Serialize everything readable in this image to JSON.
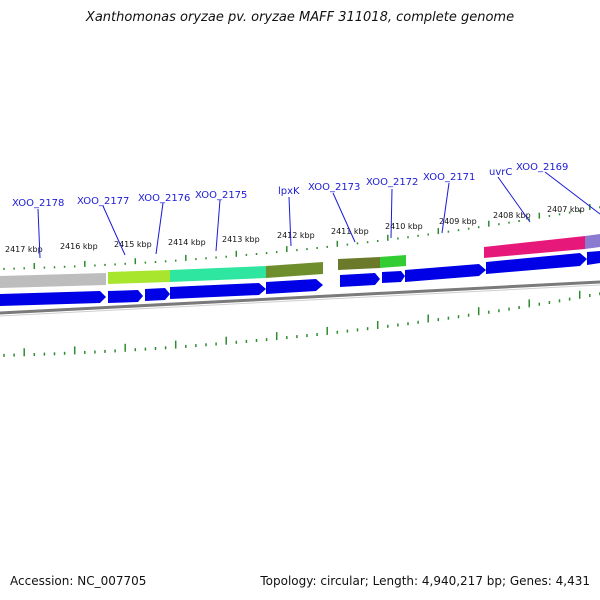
{
  "title": "Xanthomonas oryzae pv. oryzae MAFF 311018, complete genome",
  "footer": {
    "accession": "Accession: NC_007705",
    "summary": "Topology: circular; Length: 4,940,217 bp; Genes: 4,431"
  },
  "kbp_labels": [
    "2417 kbp",
    "2416 kbp",
    "2415 kbp",
    "2414 kbp",
    "2413 kbp",
    "2412 kbp",
    "2411 kbp",
    "2410 kbp",
    "2409 kbp",
    "2408 kbp",
    "2407 kbp"
  ],
  "gene_labels": [
    "XOO_2178",
    "XOO_2177",
    "XOO_2176",
    "XOO_2175",
    "lpxK",
    "XOO_2173",
    "XOO_2172",
    "XOO_2171",
    "uvrC",
    "XOO_2169"
  ],
  "colors": {
    "gene_arrow": "#0000e6",
    "tick": "#2e8b2e",
    "label": "#1a1ad6",
    "backbone": "#777777",
    "segments": [
      "#bdbdbd",
      "#a8e62e",
      "#2ee6a0",
      "#6e8e2e",
      "#6b7a2a",
      "#33cc33",
      "#e6197a",
      "#8a7ad0"
    ]
  }
}
